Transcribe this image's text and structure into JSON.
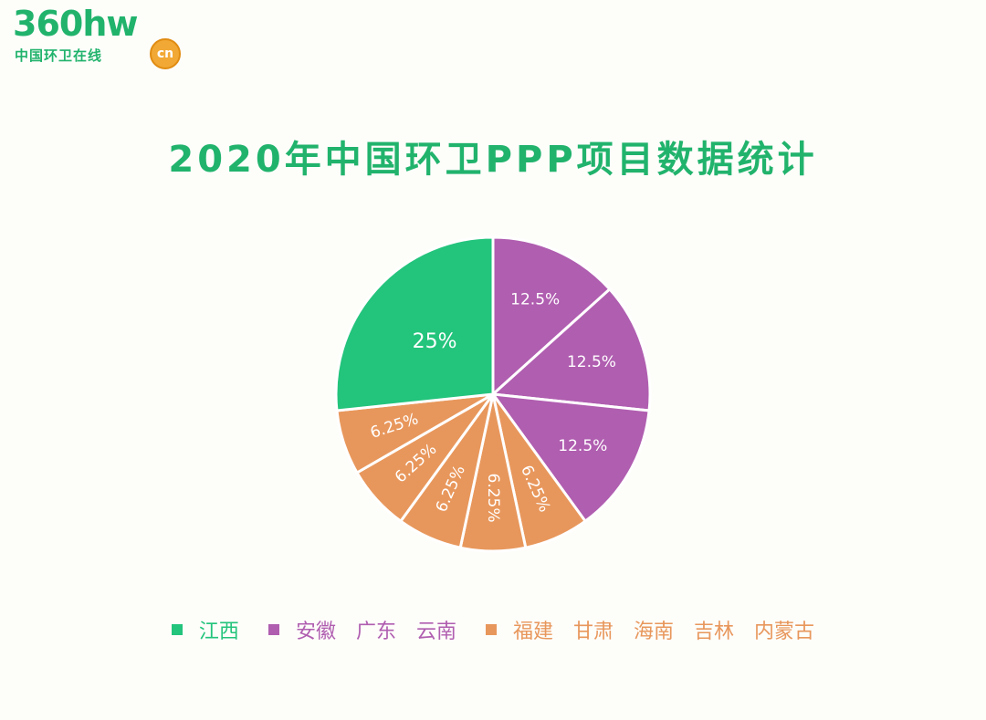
{
  "logo": {
    "main": "360hw",
    "sub": "中国环卫在线",
    "badge": "cn"
  },
  "chart_data": {
    "type": "pie",
    "title": "2020年中国环卫PPP项目数据统计",
    "colors": {
      "green": "#23c47c",
      "purple": "#b05eb0",
      "orange": "#e8975c"
    },
    "slices": [
      {
        "value": 12.5,
        "label": "12.5%",
        "group": "purple"
      },
      {
        "value": 12.5,
        "label": "12.5%",
        "group": "purple"
      },
      {
        "value": 12.5,
        "label": "12.5%",
        "group": "purple"
      },
      {
        "value": 6.25,
        "label": "6.25%",
        "group": "orange"
      },
      {
        "value": 6.25,
        "label": "6.25%",
        "group": "orange"
      },
      {
        "value": 6.25,
        "label": "6.25%",
        "group": "orange"
      },
      {
        "value": 6.25,
        "label": "6.25%",
        "group": "orange"
      },
      {
        "value": 6.25,
        "label": "6.25%",
        "group": "orange"
      },
      {
        "value": 25,
        "label": "25%",
        "group": "green"
      }
    ],
    "legend": [
      {
        "group": "green",
        "labels": [
          "江西"
        ]
      },
      {
        "group": "purple",
        "labels": [
          "安徽",
          "广东",
          "云南"
        ]
      },
      {
        "group": "orange",
        "labels": [
          "福建",
          "甘肃",
          "海南",
          "吉林",
          "内蒙古"
        ]
      }
    ]
  }
}
